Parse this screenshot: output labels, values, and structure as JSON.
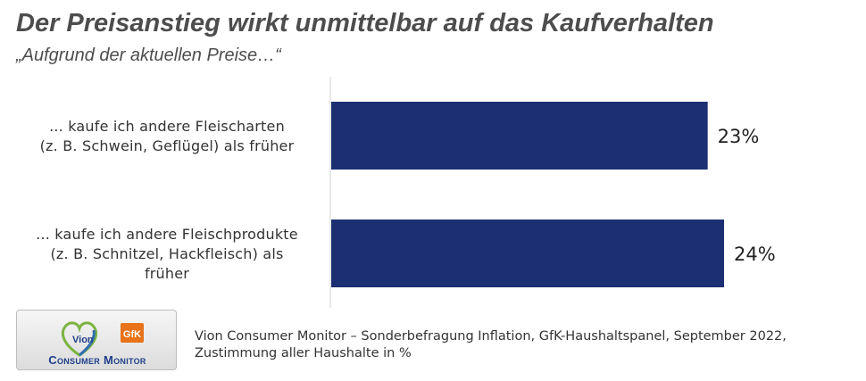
{
  "header": {
    "title": "Der Preisanstieg wirkt unmittelbar auf das Kaufverhalten",
    "subtitle": "„Aufgrund der aktuellen Preise…“"
  },
  "chart_data": {
    "type": "bar",
    "orientation": "horizontal",
    "categories": [
      [
        "... kaufe ich andere Fleischarten",
        "(z. B. Schwein, Geflügel) als früher"
      ],
      [
        "... kaufe ich andere Fleischprodukte",
        "(z. B. Schnitzel, Hackfleisch) als",
        "früher"
      ]
    ],
    "values": [
      23,
      24
    ],
    "value_labels": [
      "23%",
      "24%"
    ],
    "xlim": [
      0,
      24
    ],
    "bar_color": "#1b2f72",
    "axis_color": "#d0d0d0",
    "grid": false,
    "legend": "none"
  },
  "logo": {
    "brand": "Vion",
    "partner": "GfK",
    "name": "Consumer Monitor",
    "colors": {
      "heart_green": "#7cb342",
      "heart_blue": "#2f6db0",
      "gfk_orange": "#e8731a",
      "text_blue": "#1f3f8a"
    }
  },
  "footer": {
    "source_line1": "Vion Consumer Monitor – Sonderbefragung Inflation, GfK-Haushaltspanel, September 2022,",
    "source_line2": "Zustimmung aller Haushalte in %"
  }
}
